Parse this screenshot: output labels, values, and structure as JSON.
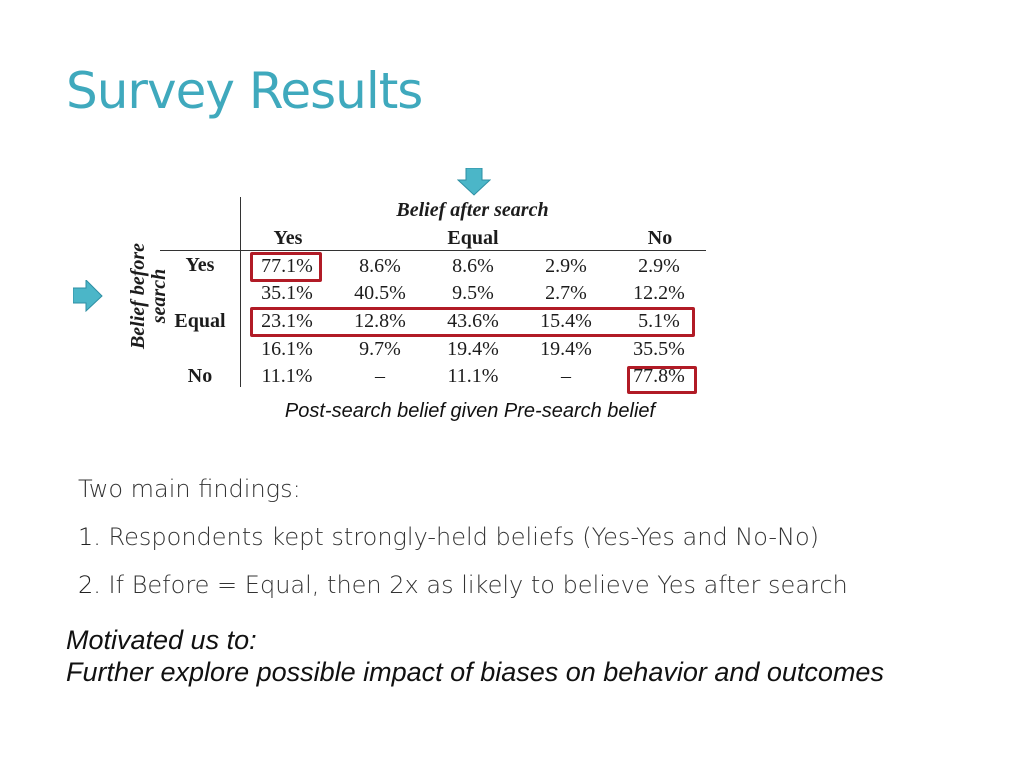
{
  "slide": {
    "title": "Survey Results",
    "table": {
      "col_group_header": "Belief after search",
      "row_group_header": "Belief before search",
      "col_headers": [
        "Yes",
        "Equal",
        "No"
      ],
      "row_headers": [
        "Yes",
        "Equal",
        "No"
      ],
      "rows": [
        [
          "77.1%",
          "8.6%",
          "8.6%",
          "2.9%",
          "2.9%"
        ],
        [
          "35.1%",
          "40.5%",
          "9.5%",
          "2.7%",
          "12.2%"
        ],
        [
          "23.1%",
          "12.8%",
          "43.6%",
          "15.4%",
          "5.1%"
        ],
        [
          "16.1%",
          "9.7%",
          "19.4%",
          "19.4%",
          "35.5%"
        ],
        [
          "11.1%",
          "–",
          "11.1%",
          "–",
          "77.8%"
        ]
      ],
      "caption": "Post-search belief given Pre-search belief",
      "highlight_color": "#b11b26",
      "arrow_color": "#4bb6c8"
    },
    "findings": {
      "intro": "Two main findings:",
      "items": [
        {
          "num": "1.",
          "text": "Respondents kept strongly-held beliefs (Yes-Yes and No-No)"
        },
        {
          "num": "2.",
          "text": "If Before = Equal, then 2x as likely to believe Yes after search"
        }
      ]
    },
    "motivation": {
      "line1": "Motivated us to:",
      "line2": "Further explore possible impact of biases on behavior and outcomes"
    }
  }
}
